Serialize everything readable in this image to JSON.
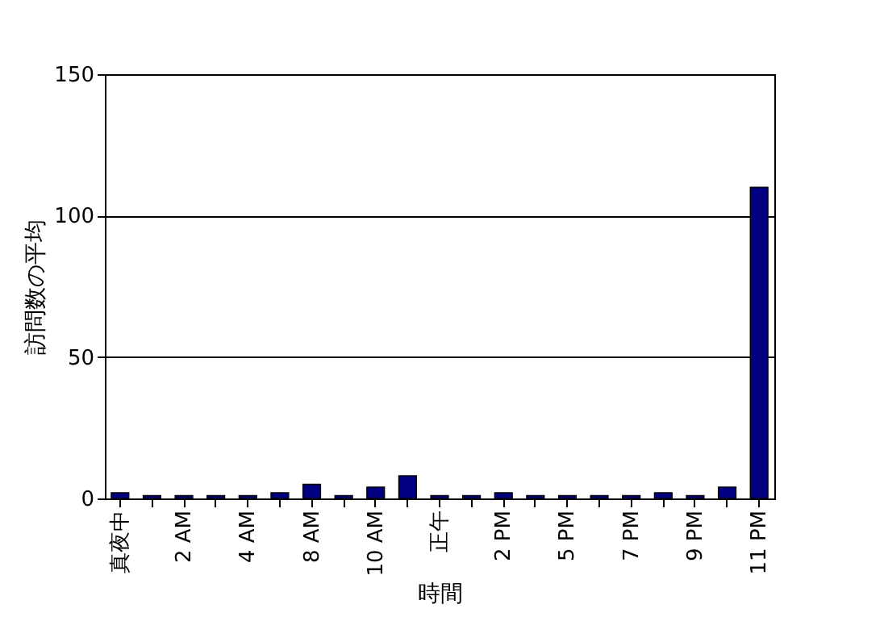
{
  "chart_data": {
    "type": "bar",
    "xlabel": "時間",
    "ylabel": "訪問数の平均",
    "categories": [
      "真夜中",
      null,
      "2 AM",
      null,
      "4 AM",
      null,
      "8 AM",
      null,
      "10 AM",
      null,
      "正午",
      null,
      "2 PM",
      null,
      "5 PM",
      null,
      "7 PM",
      null,
      "9 PM",
      null,
      "11 PM"
    ],
    "values": [
      2,
      1,
      1,
      1,
      1,
      2,
      5,
      1,
      4,
      8,
      1,
      1,
      2,
      1,
      1,
      1,
      1,
      2,
      1,
      4,
      110
    ],
    "color": "#000080",
    "ylim": [
      0,
      150
    ],
    "yticks": [
      0,
      50,
      100,
      150
    ],
    "grid": "y"
  }
}
